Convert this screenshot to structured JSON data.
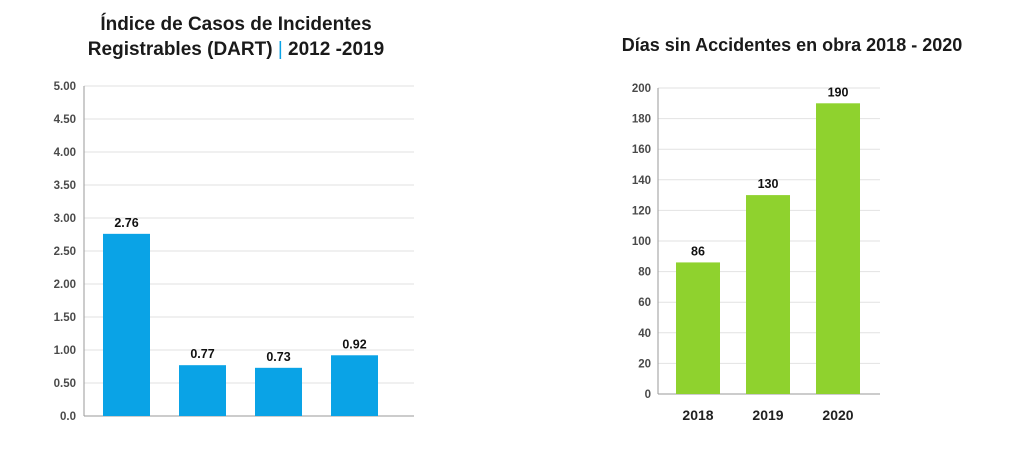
{
  "chart_data": [
    {
      "type": "bar",
      "title_line1": "Índice de Casos de Incidentes",
      "title_line2a": "Registrables (DART)",
      "title_line2b": "2012 -2019",
      "categories": [
        "",
        "",
        "",
        ""
      ],
      "values": [
        2.76,
        0.77,
        0.73,
        0.92
      ],
      "data_labels": [
        "2.76",
        "0.77",
        "0.73",
        "0.92"
      ],
      "yticks": [
        "0.0",
        "0.50",
        "1.00",
        "1.50",
        "2.00",
        "2.50",
        "3.00",
        "3.50",
        "4.00",
        "4.50",
        "5.00"
      ],
      "ylim": [
        0,
        5
      ],
      "color": "#0aa3e6",
      "grid": true
    },
    {
      "type": "bar",
      "title": "Días sin Accidentes en obra  2018 - 2020",
      "categories": [
        "2018",
        "2019",
        "2020"
      ],
      "values": [
        86,
        130,
        190
      ],
      "data_labels": [
        "86",
        "130",
        "190"
      ],
      "yticks": [
        "0",
        "20",
        "40",
        "60",
        "80",
        "100",
        "120",
        "140",
        "160",
        "180",
        "200"
      ],
      "ylim": [
        0,
        200
      ],
      "color": "#8fd22e",
      "grid": true
    }
  ]
}
